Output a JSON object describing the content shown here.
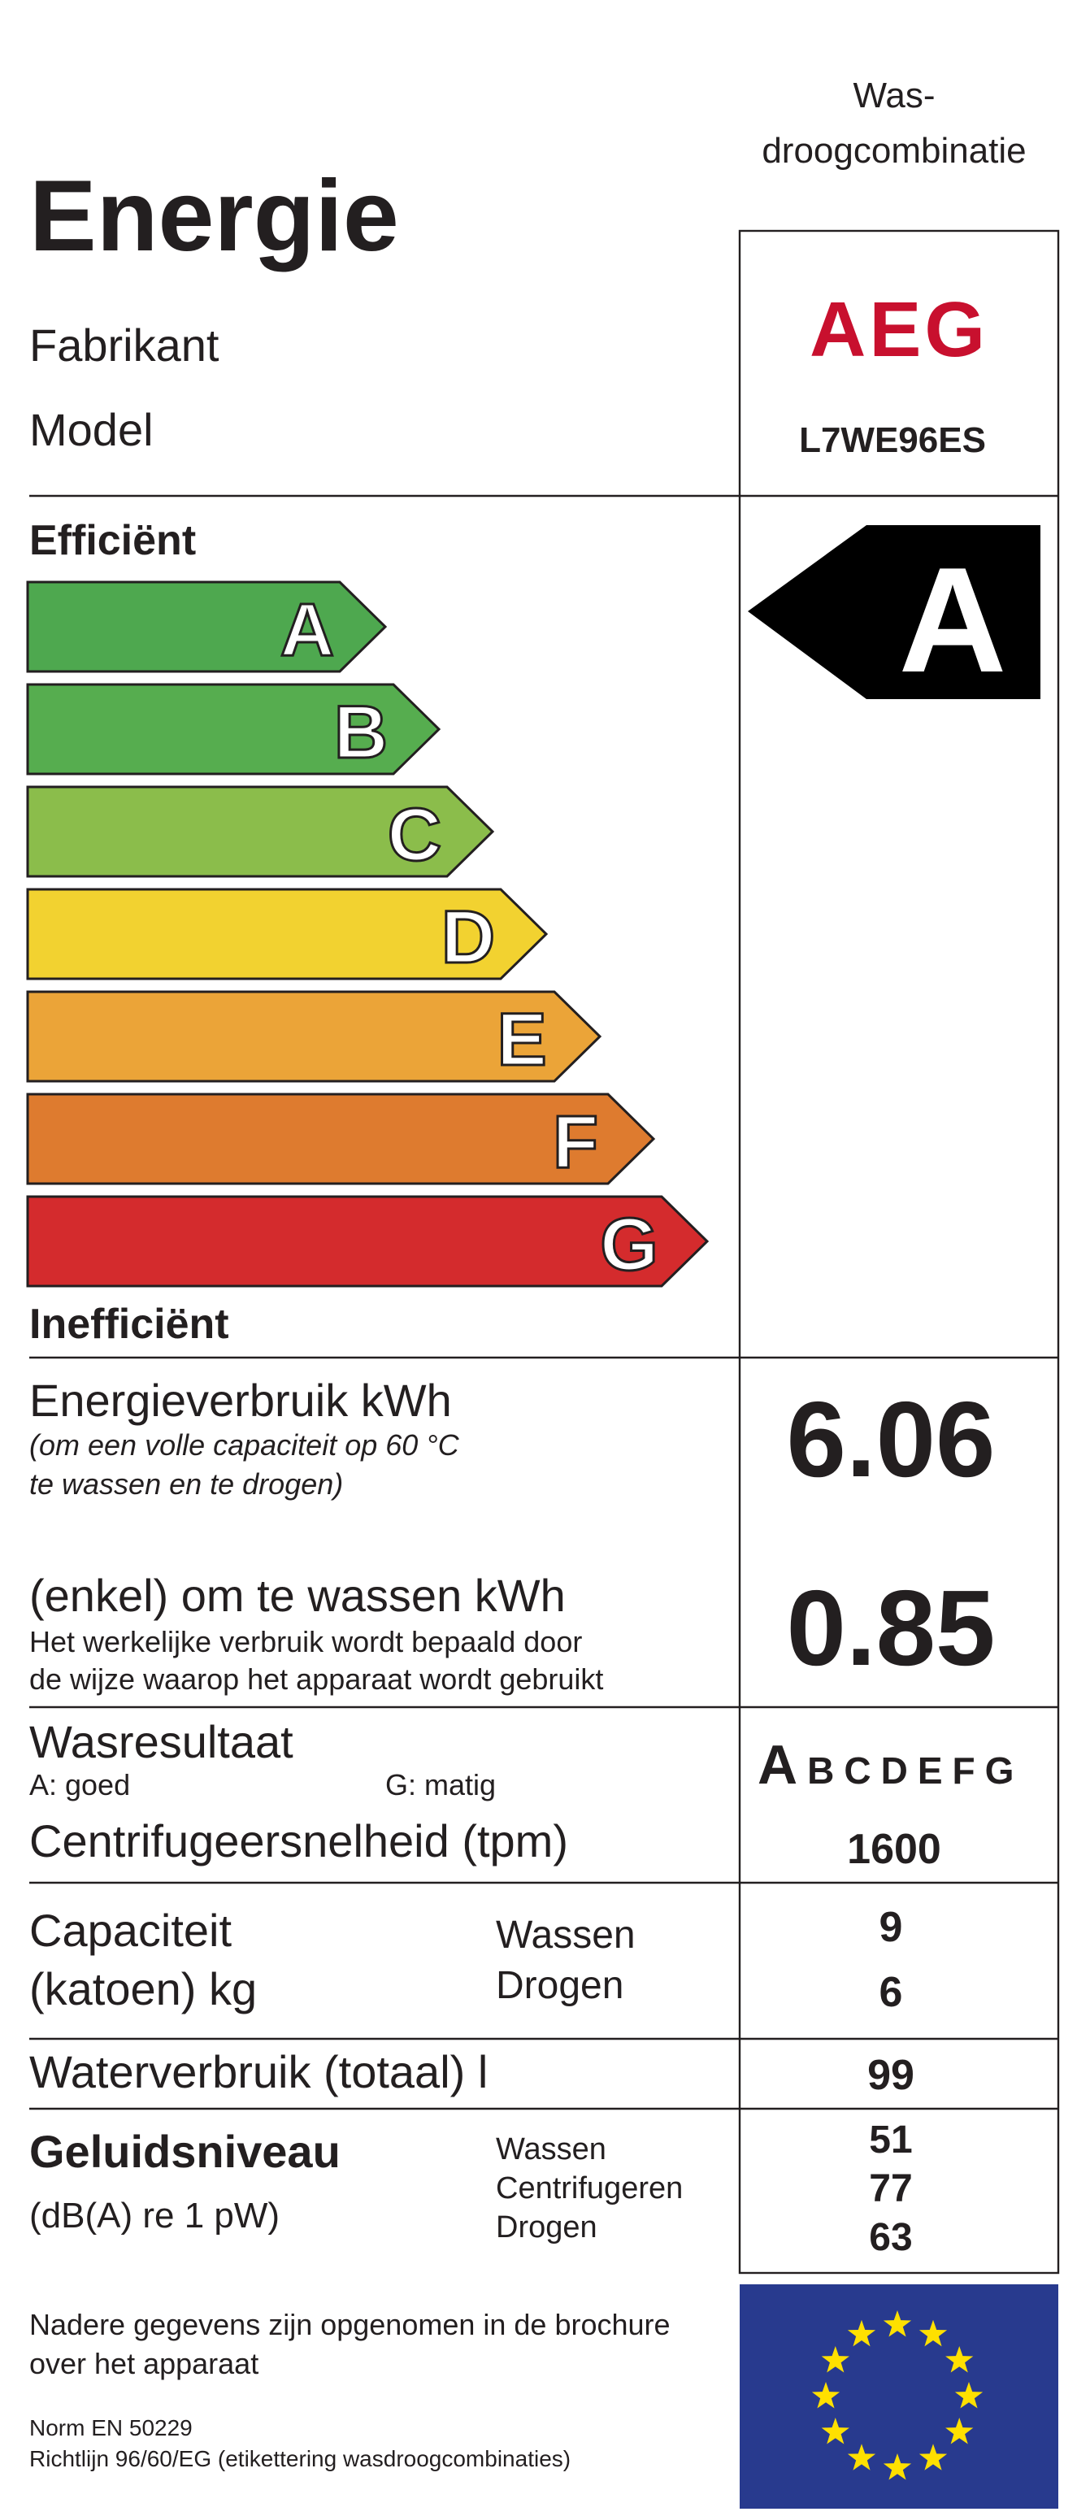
{
  "header": {
    "category": [
      "Was-",
      "droogcombinatie"
    ],
    "title": "Energie"
  },
  "manufacturer": {
    "label": "Fabrikant",
    "value": "AEG"
  },
  "model": {
    "label": "Model",
    "value": "L7WE96ES"
  },
  "efficiency": {
    "top_label": "Efficiënt",
    "bottom_label": "Inefficiënt",
    "classes": [
      "A",
      "B",
      "C",
      "D",
      "E",
      "F",
      "G"
    ],
    "rating": "A"
  },
  "energy_consumption": {
    "label": "Energieverbruik kWh",
    "note": [
      "(om een volle capaciteit op 60 °C",
      "te wassen en te drogen)"
    ],
    "value": 6.06
  },
  "wash_only": {
    "label": "(enkel) om te wassen kWh",
    "note": [
      "Het werkelijke verbruik wordt bepaald door",
      "de wijze waarop het apparaat wordt gebruikt"
    ],
    "value": 0.85
  },
  "wash_result": {
    "label": "Wasresultaat",
    "scale_top": "A: goed",
    "scale_bottom": "G: matig",
    "scale": [
      "A",
      "B",
      "C",
      "D",
      "E",
      "F",
      "G"
    ]
  },
  "spin_speed": {
    "label": "Centrifugeersnelheid (tpm)",
    "value": 1600
  },
  "capacity": {
    "label": [
      "Capaciteit",
      "(katoen) kg"
    ],
    "rows": [
      {
        "label": "Wassen",
        "value": 9
      },
      {
        "label": "Drogen",
        "value": 6
      }
    ]
  },
  "water": {
    "label": "Waterverbruik (totaal) l",
    "value": 99
  },
  "noise": {
    "label": "Geluidsniveau",
    "unit": "(dB(A) re 1 pW)",
    "rows": [
      {
        "label": "Wassen",
        "value": 51
      },
      {
        "label": "Centrifugeren",
        "value": 77
      },
      {
        "label": "Drogen",
        "value": 63
      }
    ]
  },
  "footer": {
    "note": [
      "Nadere gegevens zijn opgenomen in de brochure",
      "over het apparaat"
    ],
    "norm": "Norm EN 50229",
    "directive": "Richtlijn 96/60/EG (etikettering wasdroogcombinaties)"
  }
}
